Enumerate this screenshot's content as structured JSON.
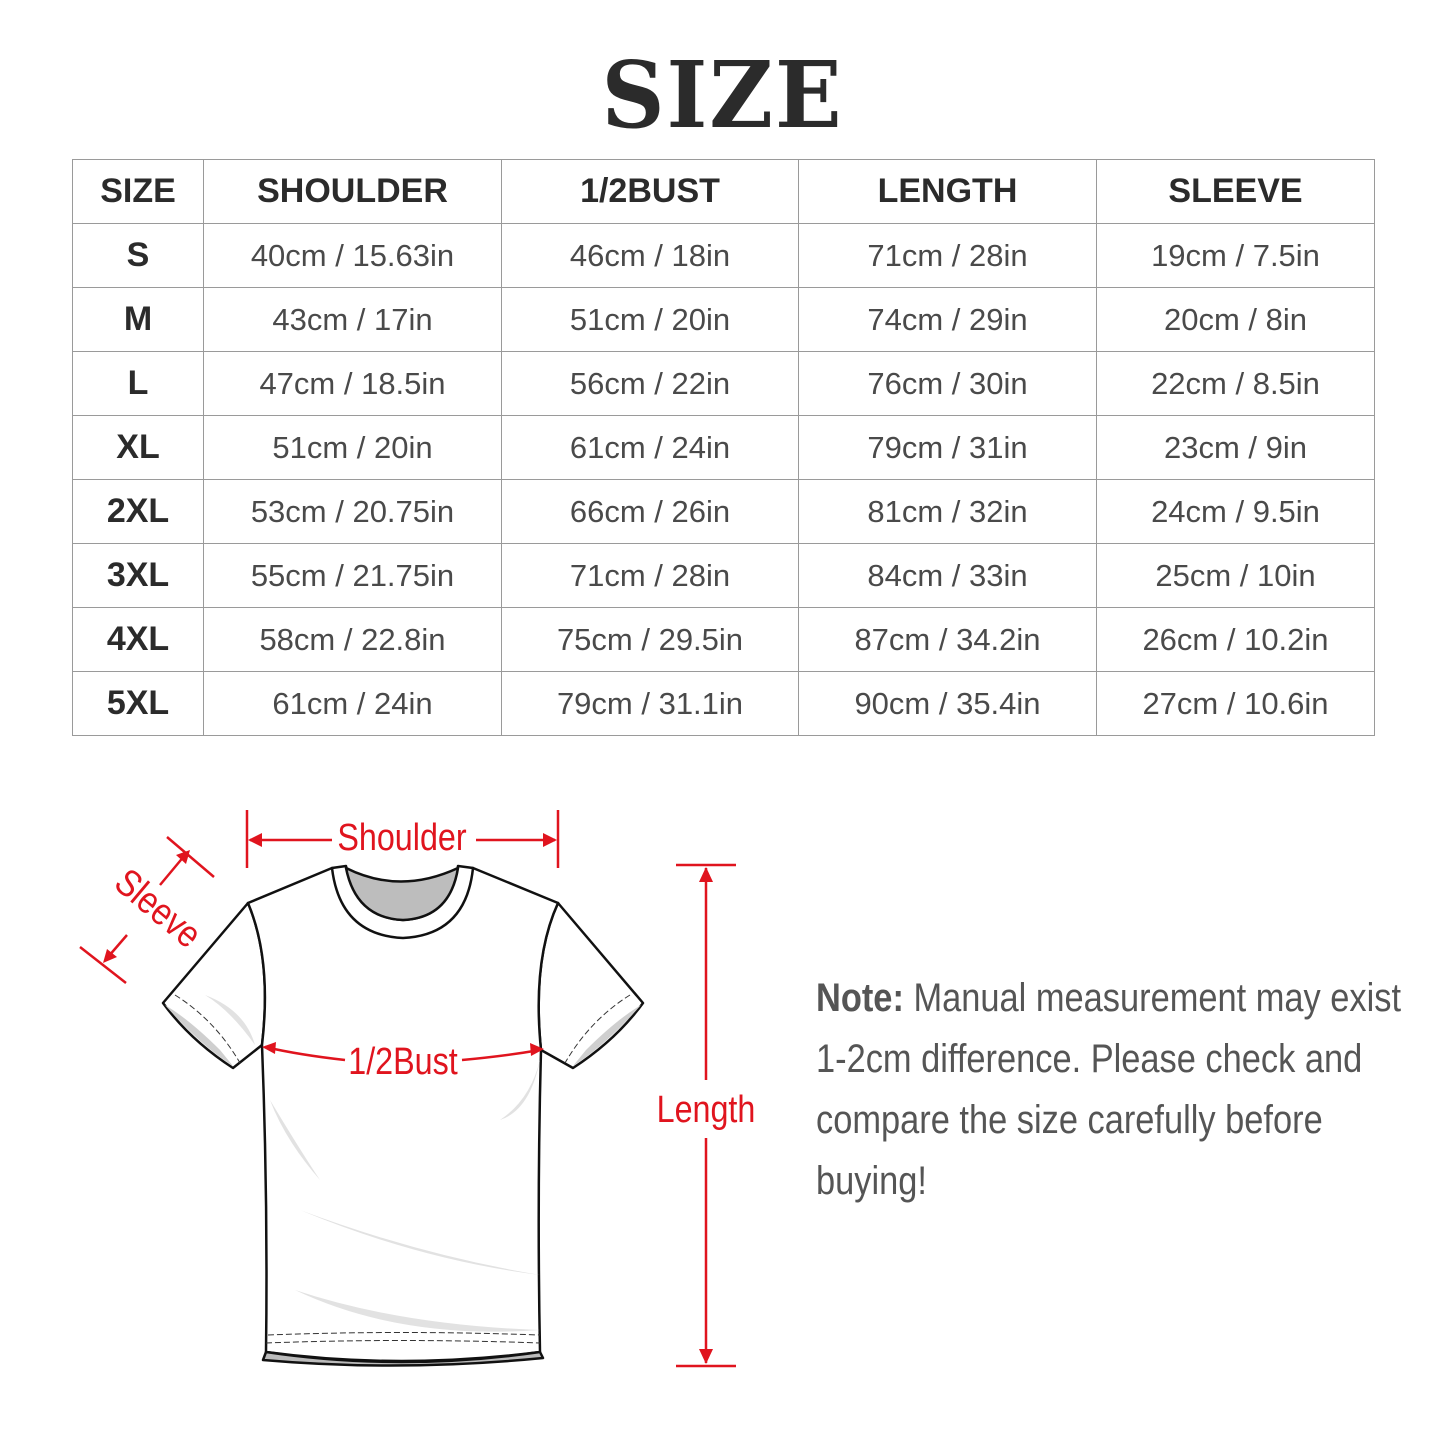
{
  "title": "SIZE",
  "table": {
    "headers": [
      "SIZE",
      "SHOULDER",
      "1/2BUST",
      "LENGTH",
      "SLEEVE"
    ],
    "rows": [
      [
        "S",
        "40cm / 15.63in",
        "46cm / 18in",
        "71cm / 28in",
        "19cm / 7.5in"
      ],
      [
        "M",
        "43cm / 17in",
        "51cm / 20in",
        "74cm / 29in",
        "20cm / 8in"
      ],
      [
        "L",
        "47cm / 18.5in",
        "56cm / 22in",
        "76cm / 30in",
        "22cm / 8.5in"
      ],
      [
        "XL",
        "51cm / 20in",
        "61cm / 24in",
        "79cm / 31in",
        "23cm / 9in"
      ],
      [
        "2XL",
        "53cm / 20.75in",
        "66cm / 26in",
        "81cm / 32in",
        "24cm / 9.5in"
      ],
      [
        "3XL",
        "55cm / 21.75in",
        "71cm / 28in",
        "84cm / 33in",
        "25cm / 10in"
      ],
      [
        "4XL",
        "58cm / 22.8in",
        "75cm / 29.5in",
        "87cm / 34.2in",
        "26cm / 10.2in"
      ],
      [
        "5XL",
        "61cm / 24in",
        "79cm / 31.1in",
        "90cm / 35.4in",
        "27cm / 10.6in"
      ]
    ]
  },
  "diagram": {
    "shoulder_label": "Shoulder",
    "sleeve_label": "Sleeve",
    "bust_label": "1/2Bust",
    "length_label": "Length",
    "accent_color": "#e0141e"
  },
  "note": {
    "prefix": "Note:",
    "text": "Manual measurement may exist 1-2cm difference. Please check and compare the size carefully before buying!"
  }
}
